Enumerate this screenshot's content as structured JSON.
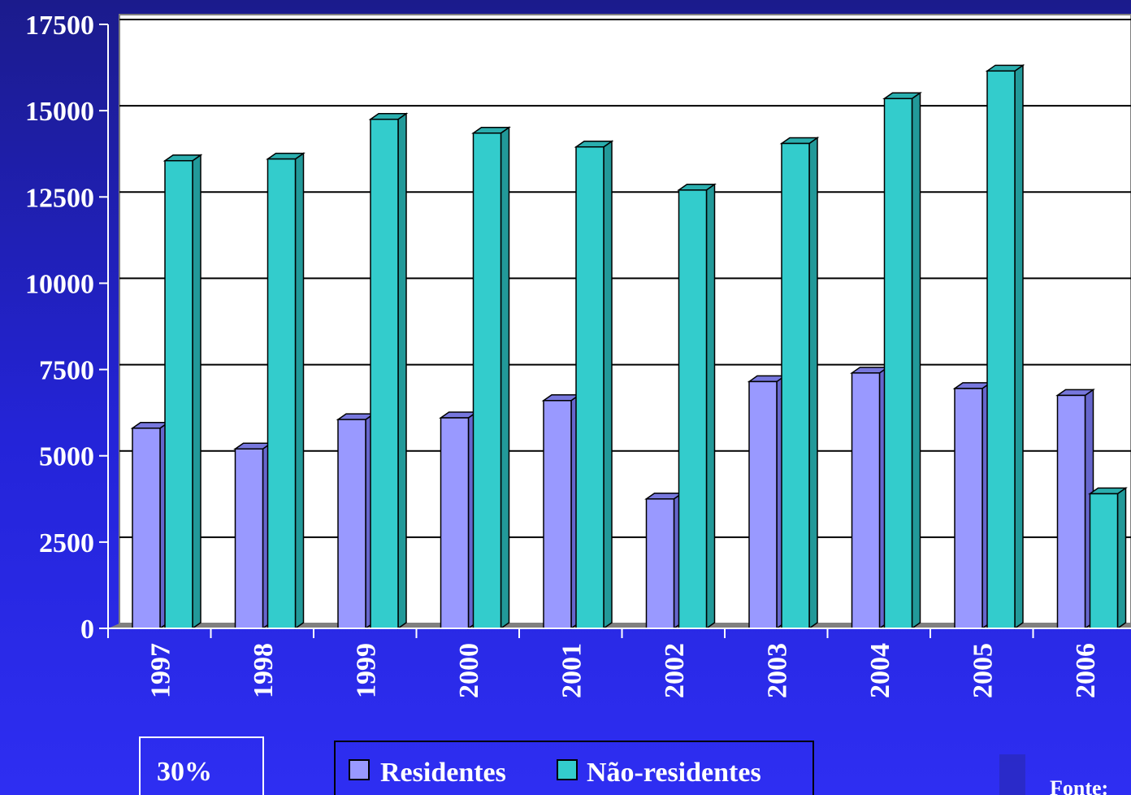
{
  "chart_data": {
    "type": "bar",
    "categories": [
      "1997",
      "1998",
      "1999",
      "2000",
      "2001",
      "2002",
      "2003",
      "2004",
      "2005",
      "2006"
    ],
    "series": [
      {
        "name": "Residentes",
        "values": [
          5800,
          5200,
          6050,
          6100,
          6600,
          3750,
          7150,
          7400,
          6950,
          6750
        ]
      },
      {
        "name": "Não-residentes",
        "values": [
          13550,
          13600,
          14750,
          14350,
          13950,
          12700,
          14050,
          15350,
          16150,
          3900
        ]
      }
    ],
    "y_ticks": [
      "0",
      "2500",
      "5000",
      "7500",
      "10000",
      "12500",
      "15000",
      "17500"
    ],
    "ylim": [
      0,
      17500
    ],
    "grid": true,
    "legend_position": "bottom",
    "colors": {
      "residentes": "#9999ff",
      "residentes_side": "#6666cc",
      "residentes_top": "#7777dd",
      "nao_residentes": "#33cccc",
      "nao_residentes_side": "#229999",
      "nao_residentes_top": "#2aaeae",
      "plot_background": "#ffffff",
      "page_background": "#2424d8"
    }
  },
  "annotations": {
    "percent_box": "30%",
    "source_label": "Fonte:"
  }
}
